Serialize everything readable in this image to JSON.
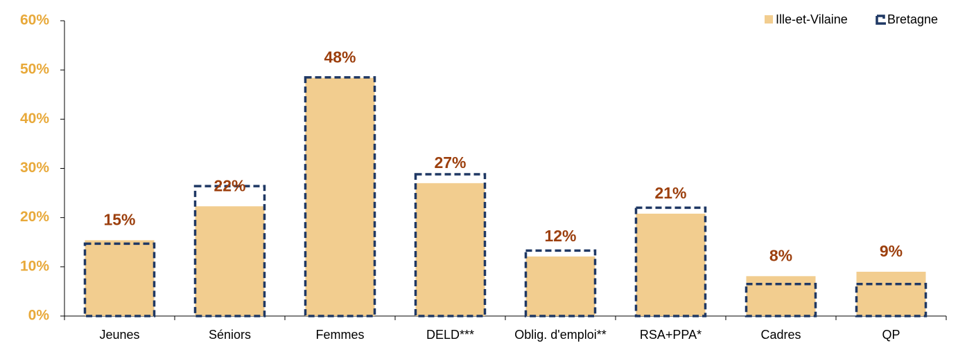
{
  "chart_data": {
    "type": "bar",
    "categories": [
      "Jeunes",
      "Séniors",
      "Femmes",
      "DELD***",
      "Oblig. d'emploi**",
      "RSA+PPA*",
      "Cadres",
      "QP"
    ],
    "series": [
      {
        "name": "Ille-et-Vilaine",
        "color": "#f2cd8f",
        "values": [
          15.4,
          22.3,
          48.4,
          27.0,
          12.1,
          20.8,
          8.1,
          9.0
        ],
        "value_labels": [
          "15%",
          "22%",
          "48%",
          "27%",
          "12%",
          "21%",
          "8%",
          "9%"
        ]
      },
      {
        "name": "Bretagne",
        "color": "#1f3864",
        "values": [
          14.7,
          26.4,
          48.5,
          28.8,
          13.3,
          22.0,
          6.5,
          6.5
        ]
      }
    ],
    "ylim": [
      0,
      60
    ],
    "yticks": [
      {
        "value": 0,
        "label": "0%"
      },
      {
        "value": 10,
        "label": "10%"
      },
      {
        "value": 20,
        "label": "20%"
      },
      {
        "value": 30,
        "label": "30%"
      },
      {
        "value": 40,
        "label": "40%"
      },
      {
        "value": 50,
        "label": "50%"
      },
      {
        "value": 60,
        "label": "60%"
      }
    ],
    "legend": "top-right"
  }
}
